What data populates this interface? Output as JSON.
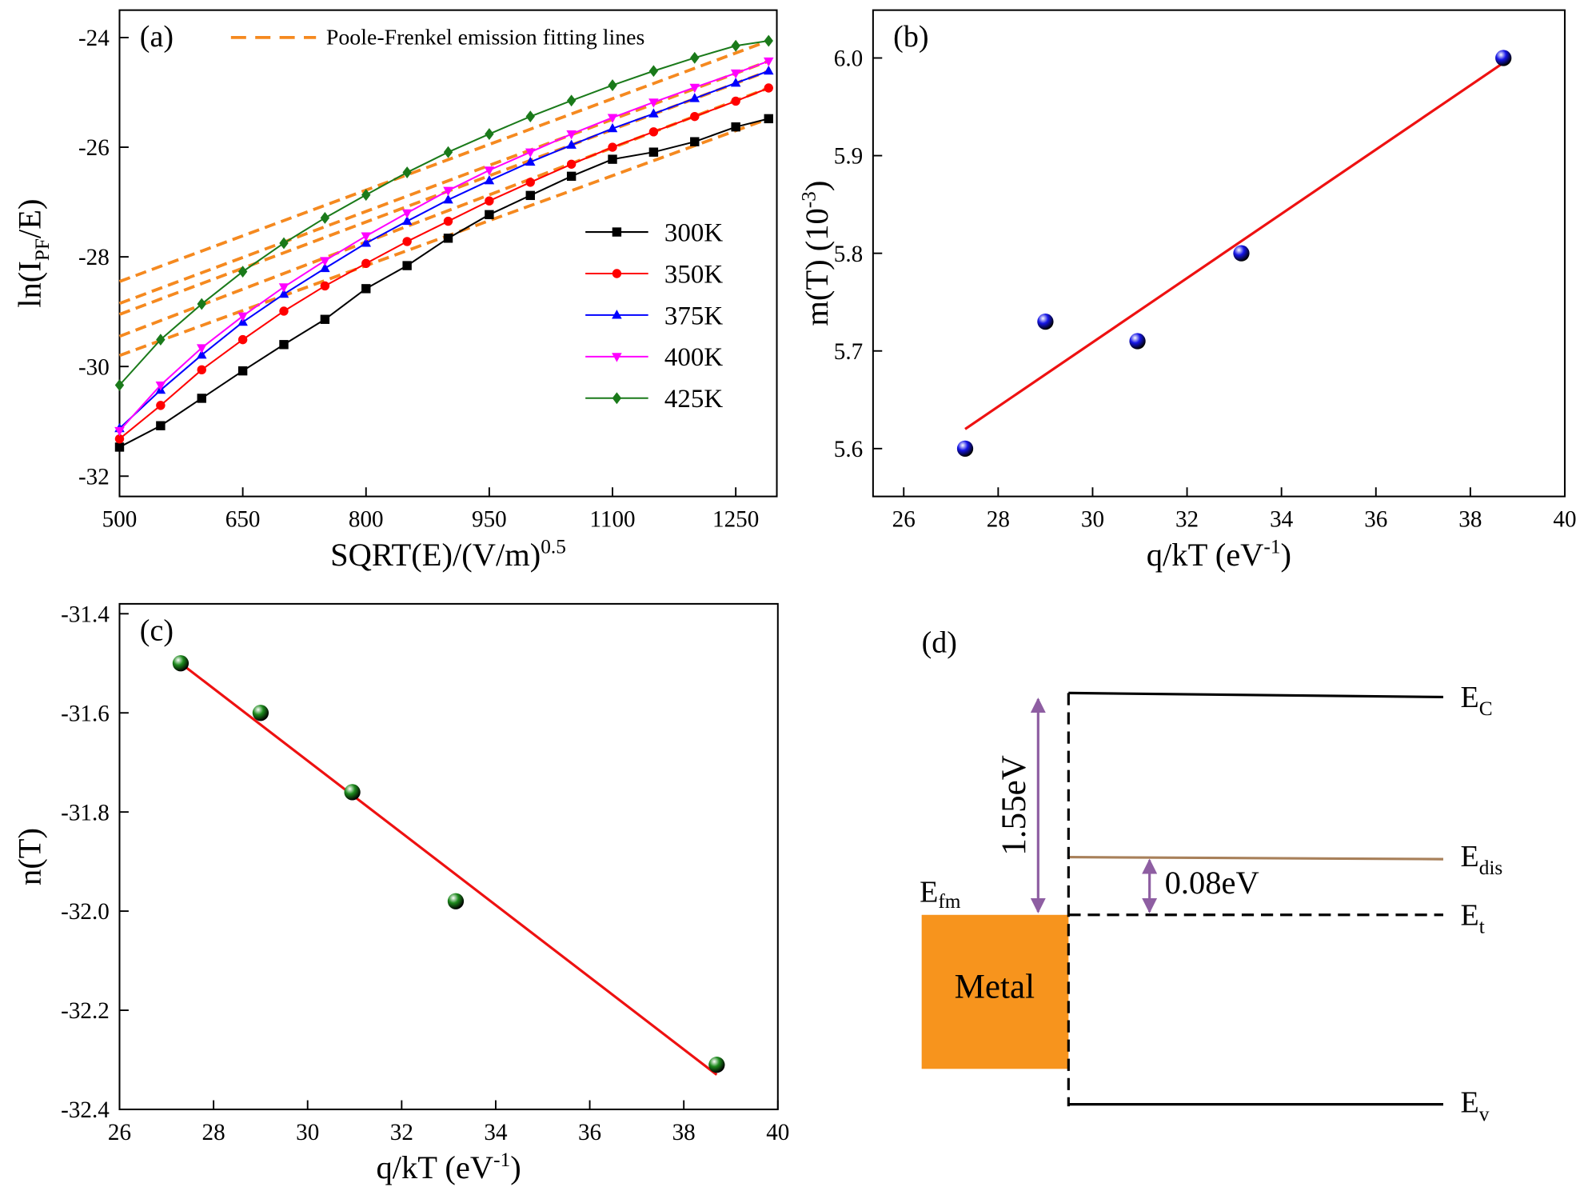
{
  "chart_data": [
    {
      "type": "line",
      "panel_label": "(a)",
      "xlabel": "SQRT(E)/(V/m)",
      "xlabel_sup": "0.5",
      "ylabel": "ln(I",
      "ylabel_sub": "PF",
      "ylabel_tail": "/E)",
      "x": [
        500,
        550,
        600,
        650,
        700,
        750,
        800,
        850,
        900,
        950,
        1000,
        1050,
        1100,
        1150,
        1200,
        1250,
        1290
      ],
      "series": [
        {
          "name": "300K",
          "color": "#000000",
          "marker": "square",
          "values": [
            -31.47,
            -31.08,
            -30.58,
            -30.08,
            -29.6,
            -29.14,
            -28.58,
            -28.16,
            -27.66,
            -27.23,
            -26.88,
            -26.53,
            -26.22,
            -26.09,
            -25.9,
            -25.63,
            -25.48
          ]
        },
        {
          "name": "350K",
          "color": "#ff0000",
          "marker": "circle",
          "values": [
            -31.32,
            -30.71,
            -30.06,
            -29.51,
            -28.99,
            -28.53,
            -28.12,
            -27.72,
            -27.35,
            -26.98,
            -26.64,
            -26.31,
            -26.0,
            -25.72,
            -25.44,
            -25.16,
            -24.92
          ]
        },
        {
          "name": "375K",
          "color": "#0000ff",
          "marker": "triangle-up",
          "values": [
            -31.13,
            -30.43,
            -29.79,
            -29.19,
            -28.68,
            -28.21,
            -27.75,
            -27.35,
            -26.96,
            -26.61,
            -26.27,
            -25.96,
            -25.66,
            -25.39,
            -25.11,
            -24.83,
            -24.61
          ]
        },
        {
          "name": "400K",
          "color": "#ff00ff",
          "marker": "triangle-down",
          "values": [
            -31.17,
            -30.34,
            -29.66,
            -29.08,
            -28.55,
            -28.07,
            -27.62,
            -27.2,
            -26.79,
            -26.42,
            -26.09,
            -25.76,
            -25.46,
            -25.18,
            -24.91,
            -24.65,
            -24.43
          ]
        },
        {
          "name": "425K",
          "color": "#1a7a1a",
          "marker": "diamond",
          "values": [
            -30.34,
            -29.51,
            -28.86,
            -28.27,
            -27.75,
            -27.29,
            -26.87,
            -26.46,
            -26.09,
            -25.76,
            -25.44,
            -25.15,
            -24.87,
            -24.61,
            -24.37,
            -24.15,
            -24.06
          ]
        }
      ],
      "fit_label": "Poole-Frenkel emission fitting lines",
      "fit_color": "#f5891f",
      "fit_x": [
        500,
        1290
      ],
      "fit_lines": [
        {
          "values": [
            -29.8,
            -25.48
          ]
        },
        {
          "values": [
            -29.45,
            -24.92
          ]
        },
        {
          "values": [
            -29.05,
            -24.61
          ]
        },
        {
          "values": [
            -28.85,
            -24.43
          ]
        },
        {
          "values": [
            -28.45,
            -24.06
          ]
        }
      ],
      "xlim": [
        500,
        1300
      ],
      "ylim": [
        -32.37,
        -23.5
      ],
      "xticks": [
        500,
        650,
        800,
        950,
        1100,
        1250
      ],
      "yticks": [
        -32,
        -30,
        -28,
        -26,
        -24
      ]
    },
    {
      "type": "scatter",
      "panel_label": "(b)",
      "xlabel": "q/kT (eV",
      "xlabel_sup": "-1",
      "xlabel_tail": ")",
      "ylabel": "m(T) (10",
      "ylabel_sup": "-3",
      "ylabel_tail": ")",
      "x": [
        27.3,
        29.0,
        30.95,
        33.15,
        38.7
      ],
      "values": [
        5.6,
        5.73,
        5.71,
        5.8,
        6.0
      ],
      "color": "#1515e6",
      "fit_x": [
        27.3,
        38.7
      ],
      "fit_values": [
        5.62,
        5.995
      ],
      "fit_color": "#ee1111",
      "xlim": [
        25.35,
        40
      ],
      "ylim": [
        5.551,
        6.049
      ],
      "xticks": [
        26,
        28,
        30,
        32,
        34,
        36,
        38,
        40
      ],
      "yticks": [
        5.6,
        5.7,
        5.8,
        5.9,
        {
          "value": 6,
          "label": "6.0"
        }
      ]
    },
    {
      "type": "scatter",
      "panel_label": "(c)",
      "xlabel": "q/kT (eV",
      "xlabel_sup": "-1",
      "xlabel_tail": ")",
      "ylabel": "n(T)",
      "x": [
        27.3,
        29.0,
        30.95,
        33.15,
        38.7
      ],
      "values": [
        -31.5,
        -31.6,
        -31.76,
        -31.98,
        -32.31
      ],
      "color": "#1d8a1d",
      "fit_x": [
        27.3,
        38.7
      ],
      "fit_values": [
        -31.5,
        -32.33
      ],
      "fit_color": "#ee1111",
      "xlim": [
        26,
        40
      ],
      "ylim": [
        -32.4,
        -31.38
      ],
      "xticks": [
        26,
        28,
        30,
        32,
        34,
        36,
        38,
        40
      ],
      "yticks": [
        -31.4,
        -31.6,
        -31.8,
        {
          "value": -32,
          "label": "-32.0"
        },
        -32.2,
        -32.4
      ]
    }
  ],
  "diagram": {
    "panel_label": "(d)",
    "levels": [
      {
        "name": "E",
        "sub": "C"
      },
      {
        "name": "E",
        "sub": "dis"
      },
      {
        "name": "E",
        "sub": "t"
      },
      {
        "name": "E",
        "sub": "v"
      }
    ],
    "fermi": {
      "name": "E",
      "sub": "fm"
    },
    "metal": "Metal",
    "gap": "1.55eV",
    "trap_depth": "0.08eV"
  }
}
